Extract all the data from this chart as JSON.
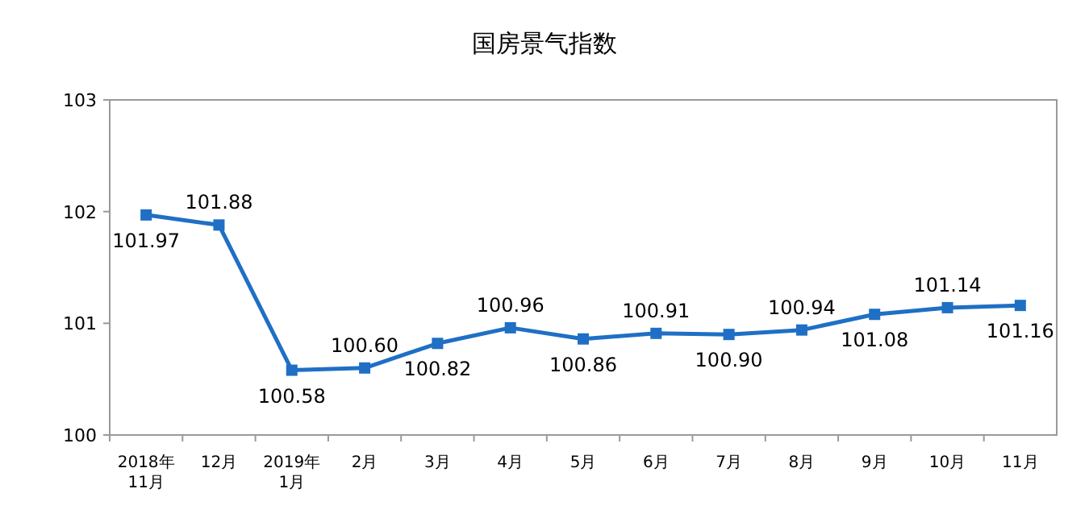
{
  "chart_data": {
    "type": "line",
    "title": "国房景气指数",
    "categories": [
      "2018年\n11月",
      "12月",
      "2019年\n1月",
      "2月",
      "3月",
      "4月",
      "5月",
      "6月",
      "7月",
      "8月",
      "9月",
      "10月",
      "11月"
    ],
    "series": [
      {
        "color": "#1f6fc5",
        "values": [
          101.97,
          101.88,
          100.58,
          100.6,
          100.82,
          100.96,
          100.86,
          100.91,
          100.9,
          100.94,
          101.08,
          101.14,
          101.16
        ],
        "value_labels": [
          "101.97",
          "101.88",
          "100.58",
          "100.60",
          "100.82",
          "100.96",
          "100.86",
          "100.91",
          "100.90",
          "100.94",
          "101.08",
          "101.14",
          "101.16"
        ]
      }
    ],
    "ylim": [
      100,
      103
    ],
    "yticks": [
      100,
      101,
      102,
      103
    ],
    "grid": false,
    "marker": "square",
    "line_style": "solid"
  }
}
